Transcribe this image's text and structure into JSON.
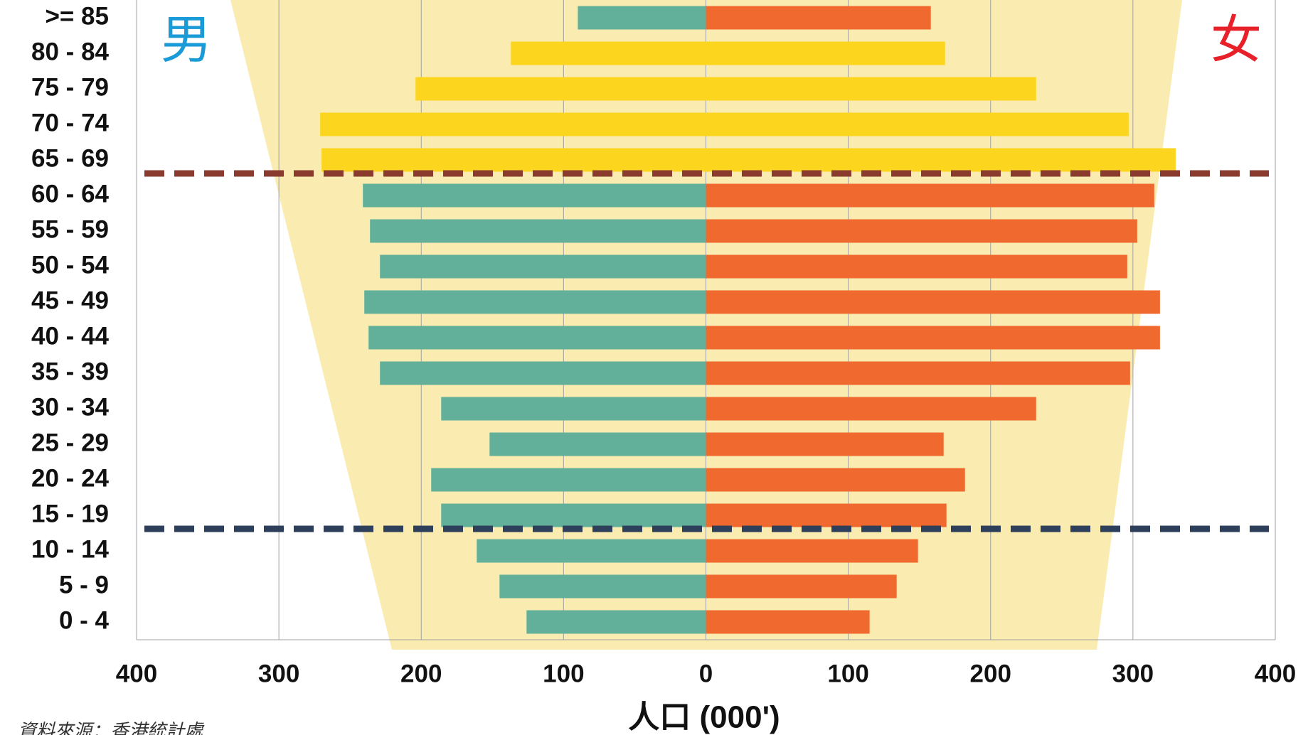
{
  "chart_data": {
    "type": "pyramid",
    "categories": [
      ">= 85",
      "80 - 84",
      "75 - 79",
      "70 - 74",
      "65 - 69",
      "60 - 64",
      "55 - 59",
      "50 - 54",
      "45 - 49",
      "40 - 44",
      "35 - 39",
      "30 - 34",
      "25 - 29",
      "20 - 24",
      "15 - 19",
      "10 - 14",
      "5 - 9",
      "0 - 4"
    ],
    "series": [
      {
        "name": "男",
        "label_color": "#1a9ad6",
        "colors": [
          "#62b09a",
          "#fbd51e",
          "#fbd51e",
          "#fbd51e",
          "#fbd51e",
          "#62b09a",
          "#62b09a",
          "#62b09a",
          "#62b09a",
          "#62b09a",
          "#62b09a",
          "#62b09a",
          "#62b09a",
          "#62b09a",
          "#62b09a",
          "#62b09a",
          "#62b09a",
          "#62b09a"
        ],
        "values": [
          -90,
          -137,
          -204,
          -271,
          -270,
          -241,
          -236,
          -229,
          -240,
          -237,
          -229,
          -186,
          -152,
          -193,
          -186,
          -161,
          -145,
          -126
        ]
      },
      {
        "name": "女",
        "label_color": "#e8202a",
        "colors": [
          "#f06a30",
          "#fbd51e",
          "#fbd51e",
          "#fbd51e",
          "#fbd51e",
          "#f06a30",
          "#f06a30",
          "#f06a30",
          "#f06a30",
          "#f06a30",
          "#f06a30",
          "#f06a30",
          "#f06a30",
          "#f06a30",
          "#f06a30",
          "#f06a30",
          "#f06a30",
          "#f06a30"
        ],
        "values": [
          158,
          168,
          232,
          297,
          330,
          315,
          303,
          296,
          319,
          319,
          298,
          232,
          167,
          182,
          169,
          149,
          134,
          115
        ]
      }
    ],
    "xlim": [
      -400,
      400
    ],
    "xticks": [
      {
        "value": -400,
        "label": "400"
      },
      {
        "value": -300,
        "label": "300"
      },
      {
        "value": -200,
        "label": "200"
      },
      {
        "value": -100,
        "label": "100"
      },
      0,
      100,
      200,
      300,
      400
    ],
    "grid": true,
    "x_label": "人口 (000')",
    "source": "資料來源：香港統計處"
  }
}
